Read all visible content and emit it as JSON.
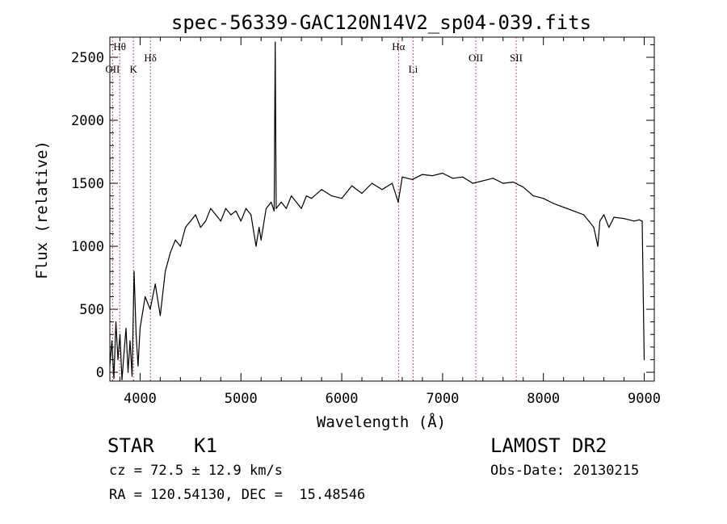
{
  "chart_data": {
    "type": "line",
    "title": "spec-56339-GAC120N14V2_sp04-039.fits",
    "xlabel": "Wavelength (Å)",
    "ylabel": "Flux (relative)",
    "xlim": [
      3700,
      9100
    ],
    "ylim": [
      -70,
      2660
    ],
    "xticks": [
      4000,
      5000,
      6000,
      7000,
      8000,
      9000
    ],
    "yticks": [
      0,
      500,
      1000,
      1500,
      2000,
      2500
    ],
    "grid": false,
    "series": [
      {
        "x": [
          3700,
          3720,
          3740,
          3760,
          3780,
          3800,
          3820,
          3840,
          3860,
          3880,
          3900,
          3920,
          3940,
          3960,
          3980,
          4000,
          4050,
          4100,
          4150,
          4200,
          4250,
          4300,
          4350,
          4400,
          4450,
          4500,
          4550,
          4600,
          4650,
          4700,
          4750,
          4800,
          4850,
          4900,
          4950,
          5000,
          5050,
          5100,
          5150,
          5180,
          5200,
          5250,
          5300,
          5330,
          5340,
          5350,
          5400,
          5450,
          5500,
          5550,
          5600,
          5650,
          5700,
          5800,
          5900,
          6000,
          6100,
          6200,
          6300,
          6400,
          6500,
          6560,
          6600,
          6700,
          6800,
          6900,
          7000,
          7100,
          7200,
          7300,
          7400,
          7500,
          7600,
          7700,
          7800,
          7900,
          8000,
          8100,
          8200,
          8300,
          8400,
          8450,
          8500,
          8540,
          8560,
          8600,
          8650,
          8700,
          8800,
          8900,
          8950,
          8980,
          9000
        ],
        "y": [
          50,
          250,
          -50,
          400,
          100,
          300,
          -60,
          150,
          350,
          0,
          250,
          -30,
          800,
          300,
          50,
          350,
          600,
          500,
          700,
          450,
          800,
          950,
          1050,
          1000,
          1150,
          1200,
          1250,
          1150,
          1200,
          1300,
          1250,
          1200,
          1300,
          1250,
          1280,
          1200,
          1300,
          1250,
          1000,
          1150,
          1050,
          1300,
          1350,
          1280,
          2620,
          1300,
          1350,
          1300,
          1400,
          1350,
          1300,
          1400,
          1380,
          1450,
          1400,
          1380,
          1480,
          1420,
          1500,
          1450,
          1500,
          1350,
          1550,
          1530,
          1570,
          1560,
          1580,
          1540,
          1550,
          1500,
          1520,
          1540,
          1500,
          1510,
          1470,
          1400,
          1380,
          1340,
          1310,
          1280,
          1250,
          1200,
          1150,
          1000,
          1200,
          1250,
          1150,
          1230,
          1220,
          1200,
          1210,
          1200,
          100
        ]
      }
    ],
    "line_markers": [
      {
        "label": "OII",
        "x": 3727,
        "row": 1
      },
      {
        "label": "Hθ",
        "x": 3798,
        "row": 0
      },
      {
        "label": "K",
        "x": 3934,
        "row": 1
      },
      {
        "label": "Hδ",
        "x": 4102,
        "row": 0.5
      },
      {
        "label": "Hα",
        "x": 6563,
        "row": 0
      },
      {
        "label": "Li",
        "x": 6708,
        "row": 1
      },
      {
        "label": "OII",
        "x": 7330,
        "row": 0.5
      },
      {
        "label": "SII",
        "x": 7730,
        "row": 0.5
      }
    ],
    "marker_color": "#b22222",
    "line_color": "#000000"
  },
  "info": {
    "class_label": "STAR",
    "subclass": "K1",
    "survey": "LAMOST DR2",
    "redshift": "cz = 72.5 ± 12.9 km/s",
    "obs_date": "Obs-Date: 20130215",
    "coords": "RA = 120.54130, DEC =  15.48546"
  }
}
